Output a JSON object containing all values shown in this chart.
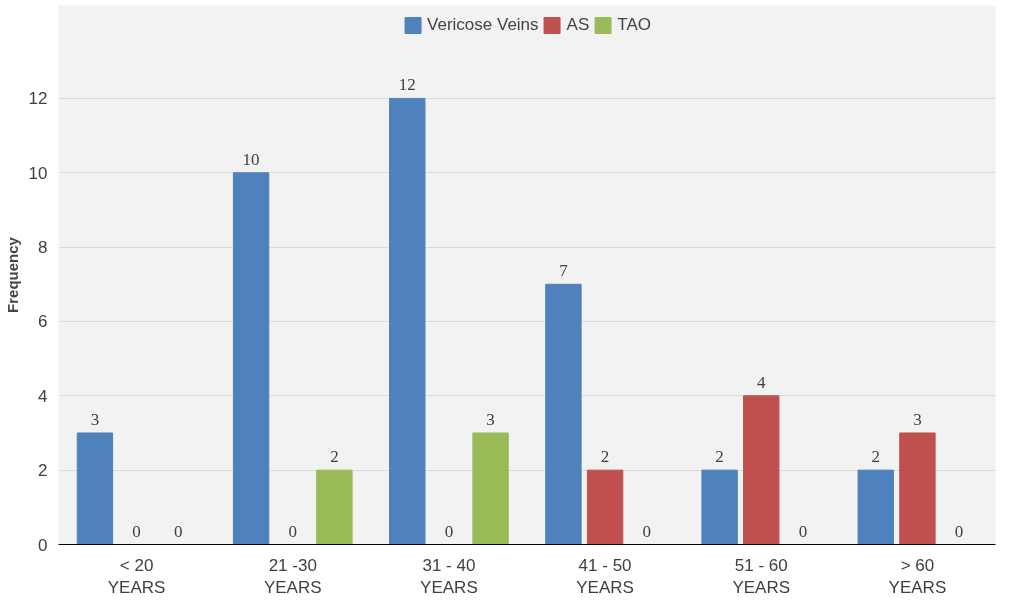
{
  "chart_data": {
    "type": "bar",
    "ylabel": "Frequency",
    "categories": [
      "< 20\nYEARS",
      "21 -30\nYEARS",
      "31 - 40\nYEARS",
      "41 - 50\nYEARS",
      "51 - 60\nYEARS",
      "> 60\nYEARS"
    ],
    "series": [
      {
        "name": "Vericose Veins",
        "color": "#4f81bd",
        "values": [
          3,
          10,
          12,
          7,
          2,
          2
        ]
      },
      {
        "name": "AS",
        "color": "#c0504d",
        "values": [
          0,
          0,
          0,
          2,
          4,
          3
        ]
      },
      {
        "name": "TAO",
        "color": "#9bbb59",
        "values": [
          0,
          2,
          3,
          0,
          0,
          0
        ]
      }
    ],
    "ylim": [
      0,
      14.5
    ],
    "yticks": [
      0,
      2,
      4,
      6,
      8,
      10,
      12
    ],
    "grid": "y",
    "legend": "top",
    "data_labels": true
  }
}
